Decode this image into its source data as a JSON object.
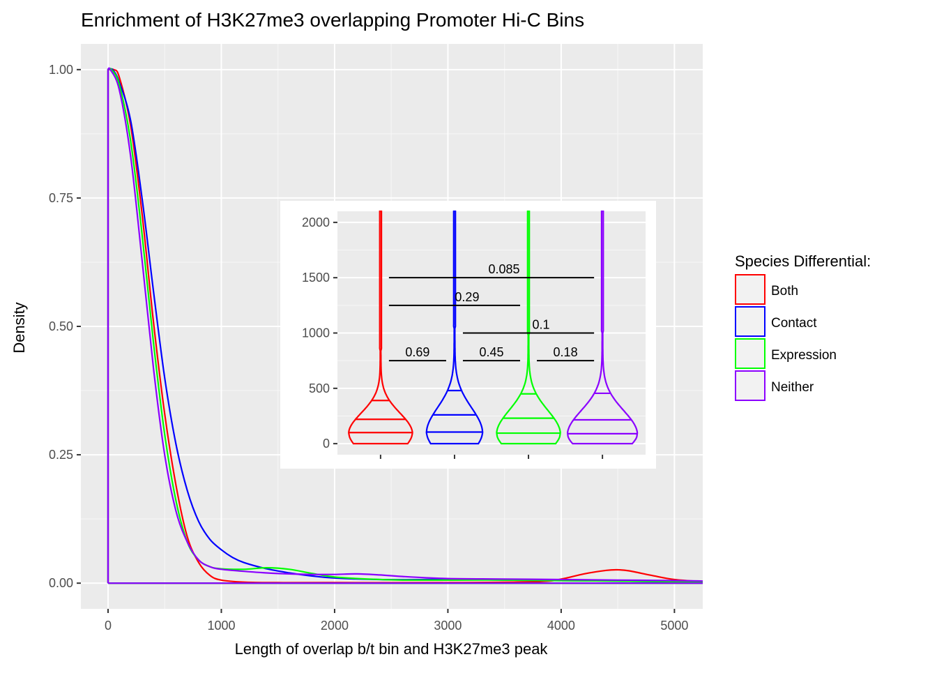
{
  "chart_data": [
    {
      "type": "line",
      "title": "Enrichment of H3K27me3 overlapping Promoter Hi-C Bins",
      "xlabel": "Length of overlap b/t bin and H3K27me3 peak",
      "ylabel": "Density",
      "xlim": [
        -240,
        5250
      ],
      "ylim": [
        -0.05,
        1.05
      ],
      "x_ticks": [
        "0",
        "1000",
        "2000",
        "3000",
        "4000",
        "5000"
      ],
      "y_ticks": [
        "0.00",
        "0.25",
        "0.50",
        "0.75",
        "1.00"
      ],
      "grid": true,
      "legend": {
        "title": "Species Differential:",
        "position": "right",
        "entries": [
          "Both",
          "Contact",
          "Expression",
          "Neither"
        ]
      },
      "series": [
        {
          "name": "Both",
          "color": "#ff0000",
          "points": [
            [
              0,
              1.0
            ],
            [
              50,
              1.0
            ],
            [
              100,
              0.985
            ],
            [
              200,
              0.89
            ],
            [
              300,
              0.72
            ],
            [
              400,
              0.51
            ],
            [
              500,
              0.33
            ],
            [
              600,
              0.19
            ],
            [
              700,
              0.09
            ],
            [
              800,
              0.04
            ],
            [
              900,
              0.015
            ],
            [
              1000,
              0.006
            ],
            [
              1200,
              0.002
            ],
            [
              1500,
              0.001
            ],
            [
              2000,
              0.001
            ],
            [
              3000,
              0.001
            ],
            [
              3800,
              0.003
            ],
            [
              4000,
              0.008
            ],
            [
              4200,
              0.018
            ],
            [
              4400,
              0.025
            ],
            [
              4500,
              0.026
            ],
            [
              4600,
              0.024
            ],
            [
              4800,
              0.015
            ],
            [
              5000,
              0.007
            ],
            [
              5250,
              0.003
            ]
          ]
        },
        {
          "name": "Contact",
          "color": "#0000ff",
          "points": [
            [
              0,
              1.0
            ],
            [
              40,
              1.0
            ],
            [
              100,
              0.975
            ],
            [
              200,
              0.9
            ],
            [
              300,
              0.75
            ],
            [
              400,
              0.57
            ],
            [
              500,
              0.4
            ],
            [
              600,
              0.27
            ],
            [
              700,
              0.18
            ],
            [
              800,
              0.12
            ],
            [
              900,
              0.085
            ],
            [
              1000,
              0.065
            ],
            [
              1100,
              0.05
            ],
            [
              1200,
              0.04
            ],
            [
              1400,
              0.028
            ],
            [
              1600,
              0.02
            ],
            [
              1800,
              0.014
            ],
            [
              2000,
              0.01
            ],
            [
              2400,
              0.007
            ],
            [
              2800,
              0.007
            ],
            [
              3000,
              0.008
            ],
            [
              3500,
              0.006
            ],
            [
              4000,
              0.005
            ],
            [
              4500,
              0.004
            ],
            [
              5000,
              0.003
            ],
            [
              5250,
              0.003
            ]
          ]
        },
        {
          "name": "Expression",
          "color": "#00ff00",
          "points": [
            [
              0,
              1.0
            ],
            [
              30,
              1.0
            ],
            [
              100,
              0.97
            ],
            [
              200,
              0.86
            ],
            [
              300,
              0.68
            ],
            [
              400,
              0.47
            ],
            [
              500,
              0.29
            ],
            [
              600,
              0.16
            ],
            [
              700,
              0.08
            ],
            [
              800,
              0.045
            ],
            [
              900,
              0.032
            ],
            [
              1000,
              0.028
            ],
            [
              1200,
              0.027
            ],
            [
              1400,
              0.03
            ],
            [
              1600,
              0.027
            ],
            [
              1800,
              0.019
            ],
            [
              2000,
              0.012
            ],
            [
              2300,
              0.008
            ],
            [
              2600,
              0.006
            ],
            [
              3000,
              0.006
            ],
            [
              3500,
              0.006
            ],
            [
              4000,
              0.005
            ],
            [
              4500,
              0.004
            ],
            [
              5000,
              0.003
            ],
            [
              5250,
              0.003
            ]
          ]
        },
        {
          "name": "Neither",
          "color": "#8b00ff",
          "points": [
            [
              0,
              1.0
            ],
            [
              20,
              1.0
            ],
            [
              100,
              0.96
            ],
            [
              200,
              0.83
            ],
            [
              300,
              0.63
            ],
            [
              400,
              0.42
            ],
            [
              500,
              0.25
            ],
            [
              600,
              0.14
            ],
            [
              700,
              0.08
            ],
            [
              800,
              0.045
            ],
            [
              900,
              0.032
            ],
            [
              1000,
              0.027
            ],
            [
              1200,
              0.023
            ],
            [
              1400,
              0.02
            ],
            [
              1600,
              0.018
            ],
            [
              1800,
              0.017
            ],
            [
              2000,
              0.017
            ],
            [
              2200,
              0.018
            ],
            [
              2400,
              0.016
            ],
            [
              2600,
              0.013
            ],
            [
              3000,
              0.009
            ],
            [
              3500,
              0.008
            ],
            [
              4000,
              0.007
            ],
            [
              4500,
              0.006
            ],
            [
              5000,
              0.005
            ],
            [
              5250,
              0.004
            ]
          ]
        }
      ]
    },
    {
      "type": "violin",
      "ylim": [
        -100,
        2100
      ],
      "y_ticks": [
        "0",
        "500",
        "1000",
        "1500",
        "2000"
      ],
      "grid": true,
      "groups": [
        {
          "name": "Both",
          "color": "#ff0000",
          "quantiles": [
            100,
            220,
            390
          ],
          "max_width": 0.41
        },
        {
          "name": "Contact",
          "color": "#0000ff",
          "quantiles": [
            105,
            260,
            480
          ],
          "max_width": 0.36
        },
        {
          "name": "Expression",
          "color": "#00ff00",
          "quantiles": [
            95,
            230,
            450
          ],
          "max_width": 0.41
        },
        {
          "name": "Neither",
          "color": "#8b00ff",
          "quantiles": [
            90,
            215,
            455
          ],
          "max_width": 0.45
        }
      ],
      "comparisons": [
        {
          "from": 1,
          "to": 4,
          "y": 1500,
          "label": "0.085"
        },
        {
          "from": 1,
          "to": 3,
          "y": 1250,
          "label": "0.29"
        },
        {
          "from": 2,
          "to": 4,
          "y": 1000,
          "label": "0.1"
        },
        {
          "from": 1,
          "to": 2,
          "y": 750,
          "label": "0.69"
        },
        {
          "from": 2,
          "to": 3,
          "y": 750,
          "label": "0.45"
        },
        {
          "from": 3,
          "to": 4,
          "y": 750,
          "label": "0.18"
        }
      ]
    }
  ]
}
